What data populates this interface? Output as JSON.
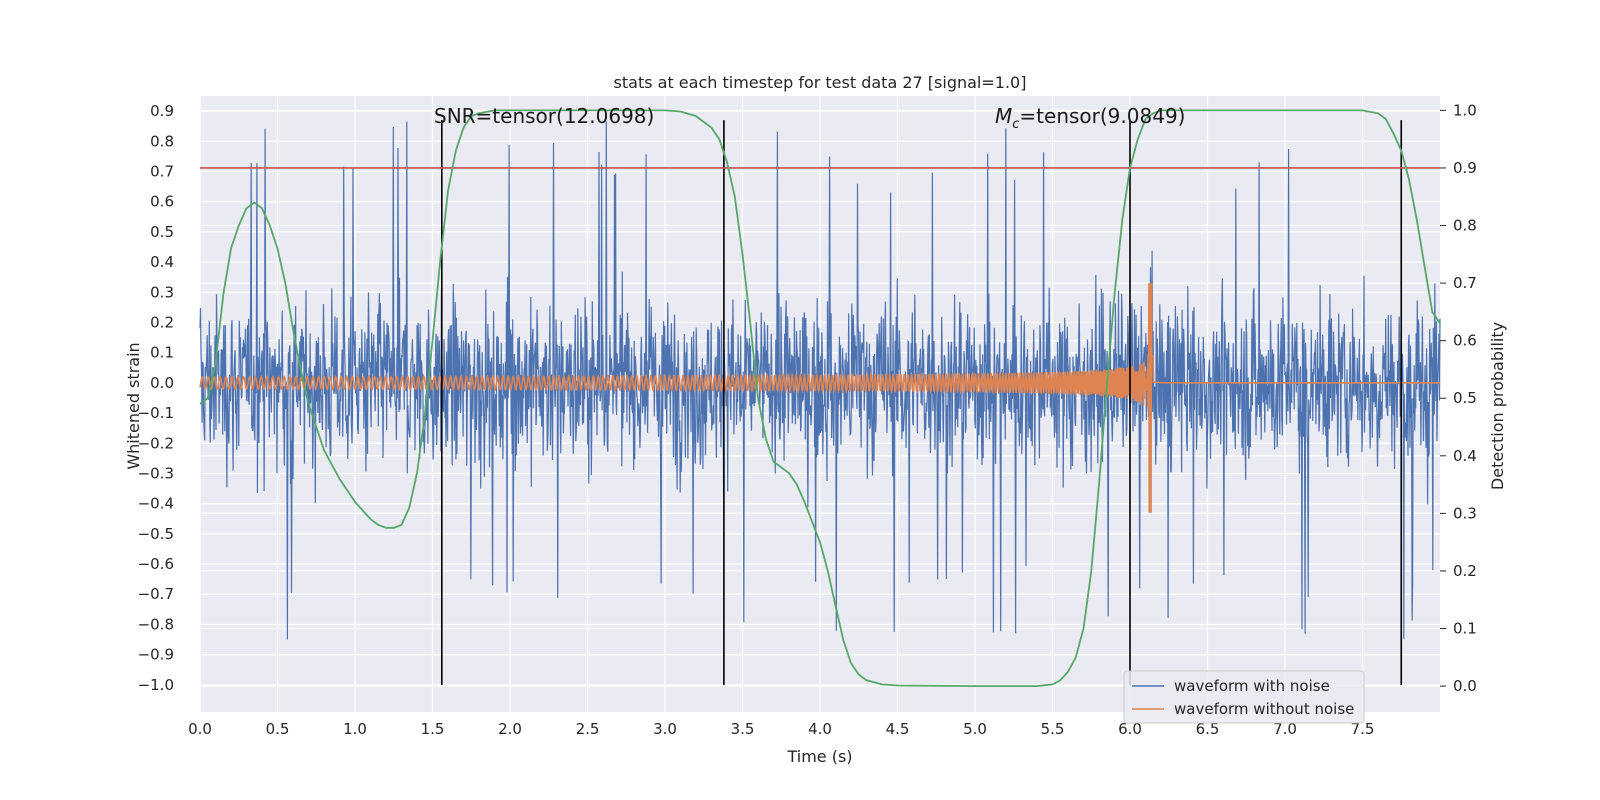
{
  "chart_data": {
    "type": "line",
    "title": "stats at each timestep for test data 27 [signal=1.0]",
    "xlabel": "Time (s)",
    "ylabel": "Whitened strain",
    "y2label": "Detection probability",
    "xlim": [
      0.0,
      8.0
    ],
    "ylim": [
      -1.09,
      0.95
    ],
    "y2lim": [
      -0.045,
      1.025
    ],
    "grid": true,
    "legend_placement": "lower-right",
    "x_ticks": [
      "0.0",
      "0.5",
      "1.0",
      "1.5",
      "2.0",
      "2.5",
      "3.0",
      "3.5",
      "4.0",
      "4.5",
      "5.0",
      "5.5",
      "6.0",
      "6.5",
      "7.0",
      "7.5"
    ],
    "y_ticks": [
      "0.9",
      "0.8",
      "0.7",
      "0.6",
      "0.5",
      "0.4",
      "0.3",
      "0.2",
      "0.1",
      "0.0",
      "−0.1",
      "−0.2",
      "−0.3",
      "−0.4",
      "−0.5",
      "−0.6",
      "−0.7",
      "−0.8",
      "−0.9",
      "−1.0"
    ],
    "y2_ticks": [
      "1.0",
      "0.9",
      "0.8",
      "0.7",
      "0.6",
      "0.5",
      "0.4",
      "0.3",
      "0.2",
      "0.1",
      "0.0"
    ],
    "threshold_line": {
      "y2": 0.9,
      "color": "#c44e52"
    },
    "annotations": {
      "snr": "SNR=tensor(12.0698)",
      "mc_sym": "M",
      "mc_sub": "c",
      "mc_rest": "=tensor(9.0849)"
    },
    "vertical_lines": [
      1.56,
      3.38,
      6.0,
      7.75
    ],
    "vertical_lines_y_range": [
      -1.0,
      0.87
    ],
    "series": [
      {
        "name": "waveform with noise",
        "color": "#4c72b0",
        "description_range": {
          "typical_amplitude": 0.55,
          "peak_max": 0.87,
          "peak_min": -0.85
        }
      },
      {
        "name": "waveform without noise",
        "color": "#dd8452",
        "chirp": {
          "start_amplitude": 0.02,
          "peak_time": 6.13,
          "peak_max": 0.33,
          "peak_min": -0.43,
          "end_time": 6.15
        }
      },
      {
        "name": "Detection probability",
        "color": "#55a868",
        "axis": "right",
        "x": [
          0.0,
          0.05,
          0.1,
          0.15,
          0.2,
          0.25,
          0.3,
          0.35,
          0.4,
          0.45,
          0.5,
          0.55,
          0.6,
          0.65,
          0.7,
          0.75,
          0.8,
          0.9,
          1.0,
          1.1,
          1.15,
          1.2,
          1.25,
          1.3,
          1.35,
          1.4,
          1.45,
          1.5,
          1.55,
          1.6,
          1.65,
          1.7,
          1.75,
          1.8,
          1.9,
          2.0,
          2.5,
          3.0,
          3.1,
          3.2,
          3.3,
          3.35,
          3.4,
          3.45,
          3.5,
          3.55,
          3.6,
          3.65,
          3.7,
          3.8,
          3.85,
          3.9,
          4.0,
          4.05,
          4.1,
          4.15,
          4.2,
          4.25,
          4.3,
          4.4,
          4.5,
          5.0,
          5.4,
          5.5,
          5.55,
          5.6,
          5.65,
          5.7,
          5.75,
          5.8,
          5.85,
          5.9,
          5.95,
          6.0,
          6.05,
          6.1,
          6.15,
          6.2,
          6.3,
          6.5,
          7.0,
          7.5,
          7.6,
          7.65,
          7.7,
          7.75,
          7.8,
          7.85,
          7.9,
          7.95,
          8.0
        ],
        "values": [
          0.49,
          0.5,
          0.56,
          0.68,
          0.76,
          0.8,
          0.83,
          0.84,
          0.83,
          0.8,
          0.76,
          0.7,
          0.62,
          0.55,
          0.49,
          0.45,
          0.41,
          0.36,
          0.32,
          0.29,
          0.28,
          0.275,
          0.275,
          0.28,
          0.31,
          0.37,
          0.47,
          0.6,
          0.74,
          0.86,
          0.93,
          0.97,
          0.99,
          0.995,
          1.0,
          1.0,
          1.0,
          1.0,
          0.998,
          0.99,
          0.97,
          0.95,
          0.91,
          0.85,
          0.75,
          0.63,
          0.5,
          0.43,
          0.39,
          0.37,
          0.35,
          0.32,
          0.25,
          0.2,
          0.14,
          0.08,
          0.04,
          0.02,
          0.01,
          0.003,
          0.001,
          0.0,
          0.0,
          0.003,
          0.01,
          0.025,
          0.05,
          0.1,
          0.2,
          0.35,
          0.52,
          0.68,
          0.81,
          0.9,
          0.95,
          0.985,
          0.995,
          1.0,
          1.0,
          1.0,
          1.0,
          1.0,
          0.995,
          0.985,
          0.96,
          0.93,
          0.88,
          0.81,
          0.73,
          0.65,
          0.63
        ]
      }
    ]
  }
}
